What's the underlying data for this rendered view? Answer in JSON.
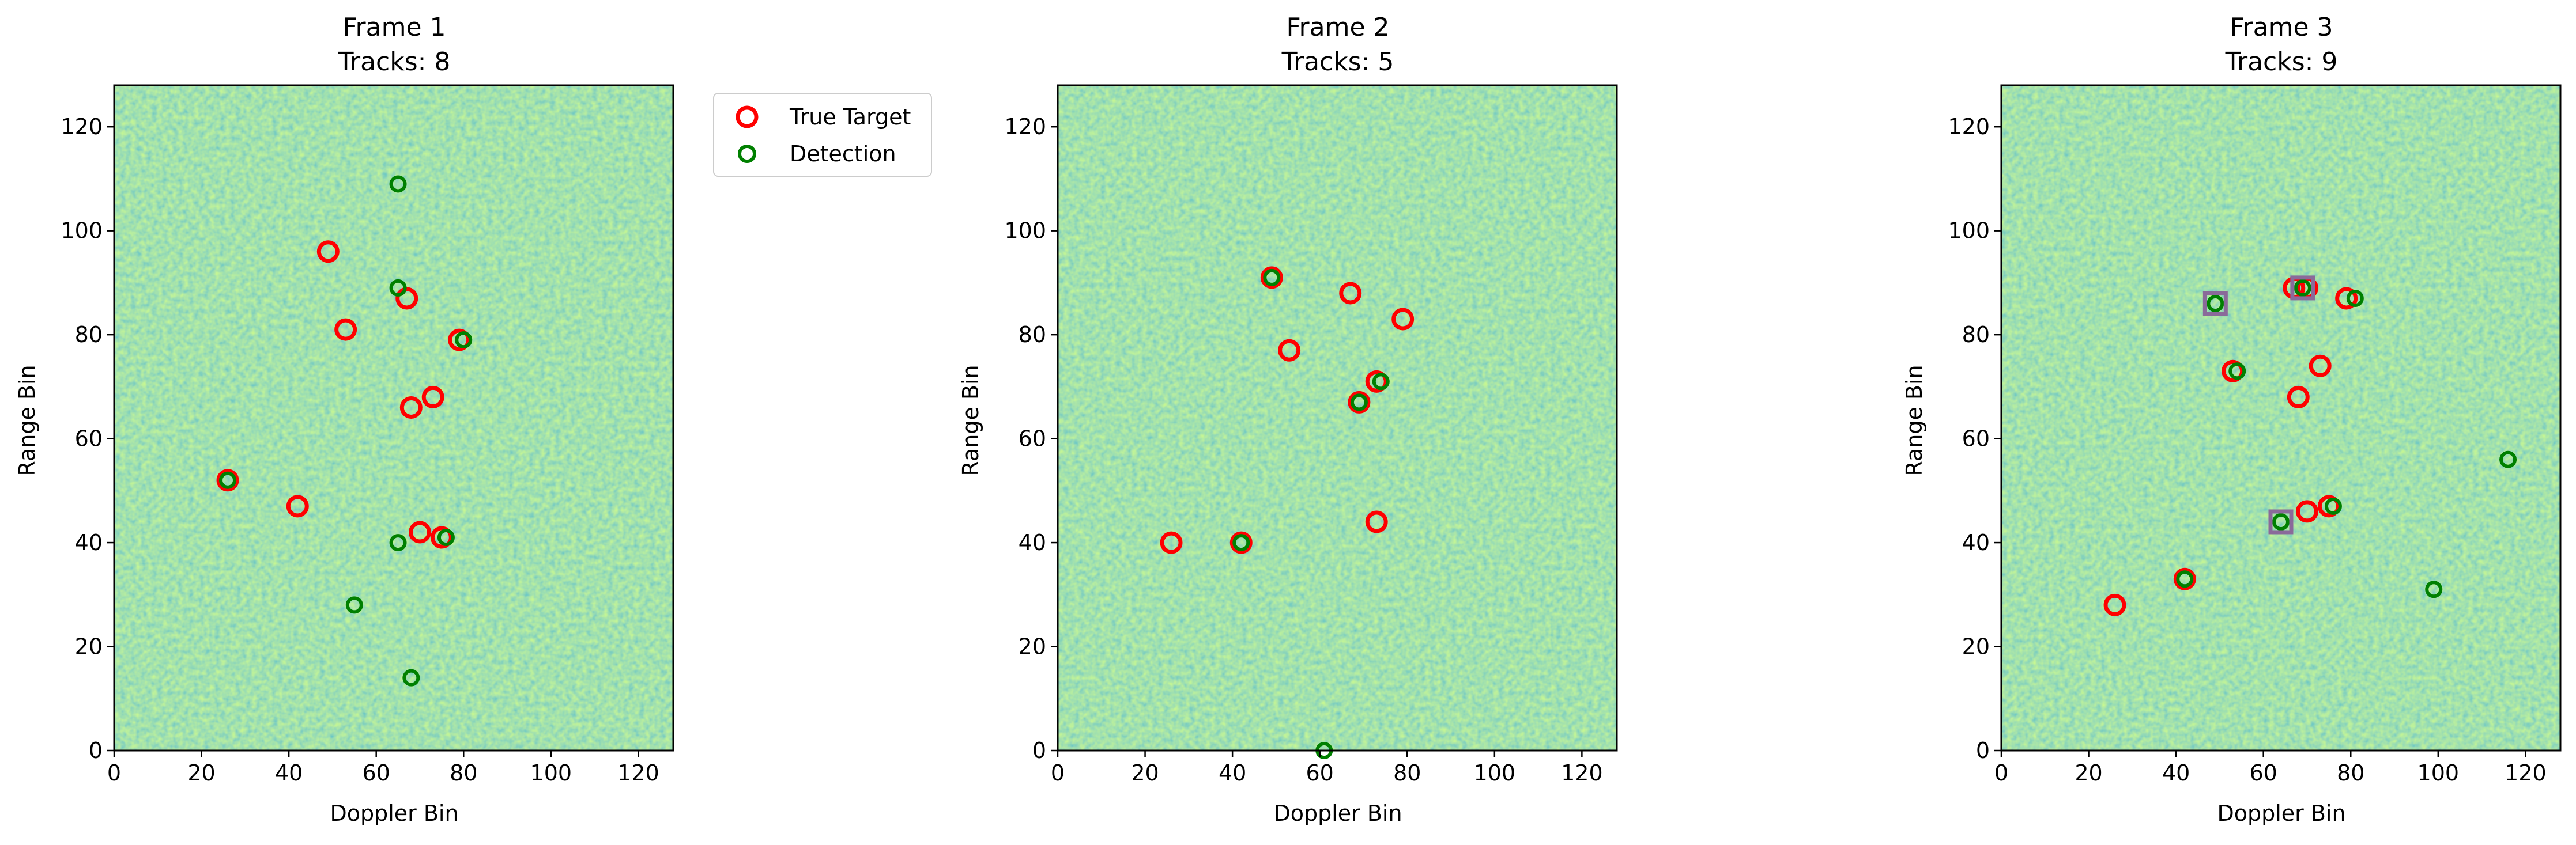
{
  "colors": {
    "true_target": "#ff0000",
    "detection": "#008000",
    "track_marker": "#8a6a9a",
    "heatmap_low": "#1f9a8a",
    "heatmap_mid": "#3cbc5a",
    "heatmap_high": "#c7e020"
  },
  "legend": {
    "placement": "right of first panel",
    "true_target": "True Target",
    "detection": "Detection"
  },
  "chart_data": [
    {
      "type": "heatmap",
      "title": "Frame 1",
      "subtitle": "Tracks: 8",
      "xlabel": "Doppler Bin",
      "ylabel": "Range Bin",
      "xlim": [
        0,
        128
      ],
      "ylim": [
        0,
        128
      ],
      "xticks": [
        0,
        20,
        40,
        60,
        80,
        100,
        120
      ],
      "yticks": [
        0,
        20,
        40,
        60,
        80,
        100,
        120
      ],
      "true_targets": [
        [
          49,
          96
        ],
        [
          53,
          81
        ],
        [
          67,
          87
        ],
        [
          79,
          79
        ],
        [
          68,
          66
        ],
        [
          73,
          68
        ],
        [
          26,
          52
        ],
        [
          42,
          47
        ],
        [
          70,
          42
        ],
        [
          75,
          41
        ]
      ],
      "detections": [
        [
          65,
          109
        ],
        [
          65,
          89
        ],
        [
          80,
          79
        ],
        [
          26,
          52
        ],
        [
          65,
          40
        ],
        [
          76,
          41
        ],
        [
          55,
          28
        ],
        [
          68,
          14
        ]
      ],
      "tracks": []
    },
    {
      "type": "heatmap",
      "title": "Frame 2",
      "subtitle": "Tracks: 5",
      "xlabel": "Doppler Bin",
      "ylabel": "Range Bin",
      "xlim": [
        0,
        128
      ],
      "ylim": [
        0,
        128
      ],
      "xticks": [
        0,
        20,
        40,
        60,
        80,
        100,
        120
      ],
      "yticks": [
        0,
        20,
        40,
        60,
        80,
        100,
        120
      ],
      "true_targets": [
        [
          49,
          91
        ],
        [
          67,
          88
        ],
        [
          79,
          83
        ],
        [
          53,
          77
        ],
        [
          73,
          71
        ],
        [
          69,
          67
        ],
        [
          26,
          40
        ],
        [
          42,
          40
        ],
        [
          73,
          44
        ]
      ],
      "detections": [
        [
          49,
          91
        ],
        [
          74,
          71
        ],
        [
          69,
          67
        ],
        [
          42,
          40
        ],
        [
          61,
          0
        ]
      ],
      "tracks": []
    },
    {
      "type": "heatmap",
      "title": "Frame 3",
      "subtitle": "Tracks: 9",
      "xlabel": "Doppler Bin",
      "ylabel": "Range Bin",
      "xlim": [
        0,
        128
      ],
      "ylim": [
        0,
        128
      ],
      "xticks": [
        0,
        20,
        40,
        60,
        80,
        100,
        120
      ],
      "yticks": [
        0,
        20,
        40,
        60,
        80,
        100,
        120
      ],
      "true_targets": [
        [
          67,
          89
        ],
        [
          70,
          89
        ],
        [
          79,
          87
        ],
        [
          53,
          73
        ],
        [
          73,
          74
        ],
        [
          68,
          68
        ],
        [
          70,
          46
        ],
        [
          75,
          47
        ],
        [
          26,
          28
        ],
        [
          42,
          33
        ]
      ],
      "detections": [
        [
          49,
          86
        ],
        [
          69,
          89
        ],
        [
          81,
          87
        ],
        [
          54,
          73
        ],
        [
          64,
          44
        ],
        [
          76,
          47
        ],
        [
          42,
          33
        ],
        [
          116,
          56
        ],
        [
          99,
          31
        ]
      ],
      "tracks": [
        [
          49,
          86
        ],
        [
          69,
          89
        ],
        [
          64,
          44
        ]
      ]
    }
  ]
}
